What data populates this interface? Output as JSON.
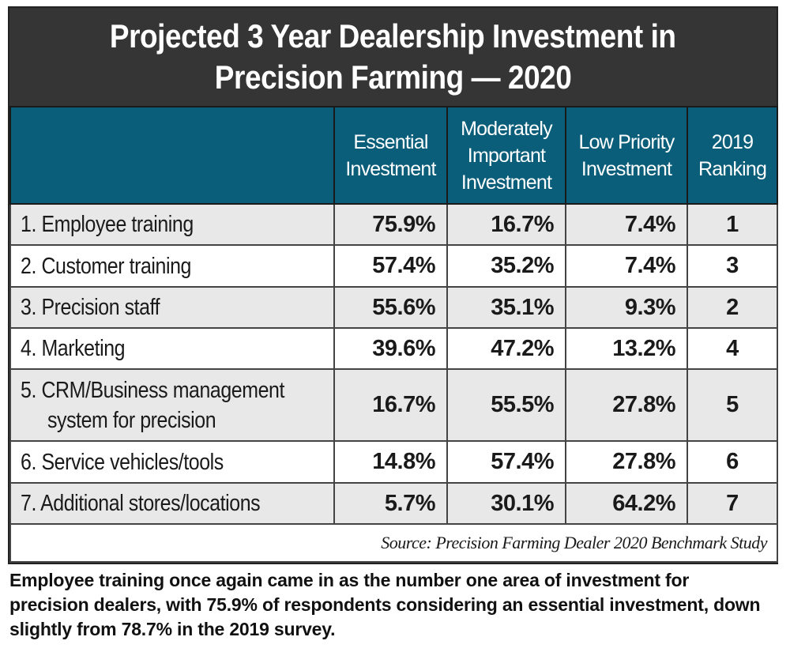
{
  "chart_data": {
    "type": "table",
    "title_lines": [
      "Projected 3 Year Dealership Investment in",
      "Precision Farming — 2020"
    ],
    "columns": [
      "",
      "Essential Investment",
      "Moderately Important Investment",
      "Low Priority Investment",
      "2019 Ranking"
    ],
    "rows": [
      {
        "label": "1. Employee training",
        "essential": "75.9%",
        "moderate": "16.7%",
        "low": "7.4%",
        "rank_2019": "1"
      },
      {
        "label": "2. Customer training",
        "essential": "57.4%",
        "moderate": "35.2%",
        "low": "7.4%",
        "rank_2019": "3"
      },
      {
        "label": "3. Precision staff",
        "essential": "55.6%",
        "moderate": "35.1%",
        "low": "9.3%",
        "rank_2019": "2"
      },
      {
        "label": "4. Marketing",
        "essential": "39.6%",
        "moderate": "47.2%",
        "low": "13.2%",
        "rank_2019": "4"
      },
      {
        "label": "5. CRM/Business management system for precision",
        "essential": "16.7%",
        "moderate": "55.5%",
        "low": "27.8%",
        "rank_2019": "5"
      },
      {
        "label": "6. Service vehicles/tools",
        "essential": "14.8%",
        "moderate": "57.4%",
        "low": "27.8%",
        "rank_2019": "6"
      },
      {
        "label": "7. Additional stores/locations",
        "essential": "5.7%",
        "moderate": "30.1%",
        "low": "64.2%",
        "rank_2019": "7"
      }
    ],
    "source": "Source: Precision Farming Dealer 2020 Benchmark Study"
  },
  "header_lines": {
    "essential": [
      "Essential",
      "Investment"
    ],
    "moderate": [
      "Moderately",
      "Important",
      "Investment"
    ],
    "low": [
      "Low Priority",
      "Investment"
    ],
    "rank": [
      "2019",
      "Ranking"
    ]
  },
  "crm_label_lines": [
    "5. CRM/Business management",
    "system for precision"
  ],
  "caption": "Employee training once again came in as the number one area of investment for precision dealers, with 75.9% of respondents considering an essential investment, down slightly from 78.7% in the 2019 survey.",
  "colors": {
    "title_bg": "#353535",
    "header_bg": "#0b5e7a",
    "alt_row": "#e8e8e8"
  }
}
